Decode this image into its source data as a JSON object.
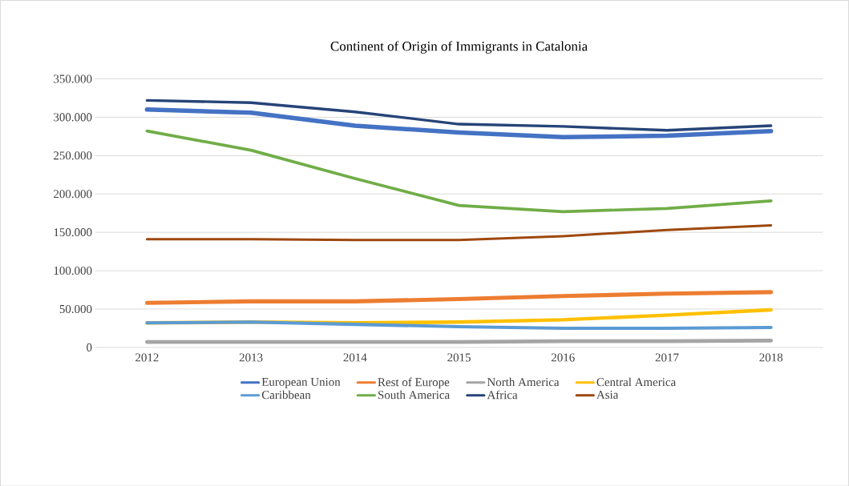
{
  "chart_data": {
    "type": "line",
    "title": "Continent of Origin of Immigrants in Catalonia",
    "categories": [
      "2012",
      "2013",
      "2014",
      "2015",
      "2016",
      "2017",
      "2018"
    ],
    "series": [
      {
        "name": "European Union",
        "color": "#4472c4",
        "values": [
          310000,
          306000,
          289000,
          280000,
          274000,
          276000,
          282000
        ]
      },
      {
        "name": "Rest of Europe",
        "color": "#ed7d31",
        "values": [
          58000,
          60000,
          60000,
          63000,
          67000,
          70000,
          72000
        ]
      },
      {
        "name": "North America",
        "color": "#a5a5a5",
        "values": [
          7000,
          7000,
          7000,
          7000,
          8000,
          8000,
          9000
        ]
      },
      {
        "name": "Central America",
        "color": "#ffc000",
        "values": [
          32000,
          33000,
          32000,
          33000,
          36000,
          42000,
          49000
        ]
      },
      {
        "name": "Caribbean",
        "color": "#5b9bd5",
        "values": [
          32000,
          33000,
          30000,
          27000,
          25000,
          25000,
          26000
        ]
      },
      {
        "name": "South America",
        "color": "#70ad47",
        "values": [
          282000,
          257000,
          220000,
          185000,
          177000,
          181000,
          191000
        ]
      },
      {
        "name": "Africa",
        "color": "#264478",
        "values": [
          322000,
          319000,
          307000,
          291000,
          288000,
          283000,
          289000
        ]
      },
      {
        "name": "Asia",
        "color": "#9e480e",
        "values": [
          141000,
          141000,
          140000,
          140000,
          145000,
          153000,
          159000
        ]
      }
    ],
    "ylim": [
      0,
      350000
    ],
    "yticks": [
      0,
      {
        "value": 50000,
        "label": "50.000"
      },
      {
        "value": 100000,
        "label": "100.000"
      },
      {
        "value": 150000,
        "label": "150.000"
      },
      {
        "value": 200000,
        "label": "200.000"
      },
      {
        "value": 250000,
        "label": "250.000"
      },
      {
        "value": 300000,
        "label": "300.000"
      },
      {
        "value": 350000,
        "label": "350.000"
      }
    ],
    "grid": "y",
    "legend": "bottom",
    "marker": "none",
    "line_style": "solid"
  }
}
